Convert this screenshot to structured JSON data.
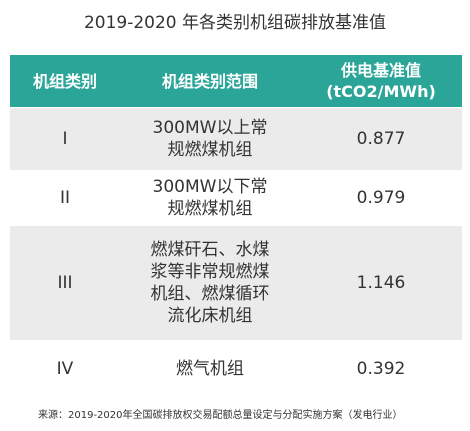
{
  "title": "2019-2020 年各类别机组碳排放基准值",
  "table": {
    "header": [
      [
        "机组类别"
      ],
      [
        "机组类别范围"
      ],
      [
        "供电基准值",
        "(tCO2/MWh)"
      ]
    ],
    "rows": [
      [
        [
          "I"
        ],
        [
          "300MW以上常",
          "规燃煤机组"
        ],
        [
          "0.877"
        ]
      ],
      [
        [
          "II"
        ],
        [
          "300MW以下常",
          "规燃煤机组"
        ],
        [
          "0.979"
        ]
      ],
      [
        [
          "III"
        ],
        [
          "燃煤矸石、水煤",
          "浆等非常规燃煤",
          "机组、燃煤循环",
          "流化床机组"
        ],
        [
          "1.146"
        ]
      ],
      [
        [
          "IV"
        ],
        [
          "燃气机组"
        ],
        [
          "0.392"
        ]
      ]
    ]
  },
  "source": "来源：2019-2020年全国碳排放权交易配额总量设定与分配实施方案（发电行业）"
}
